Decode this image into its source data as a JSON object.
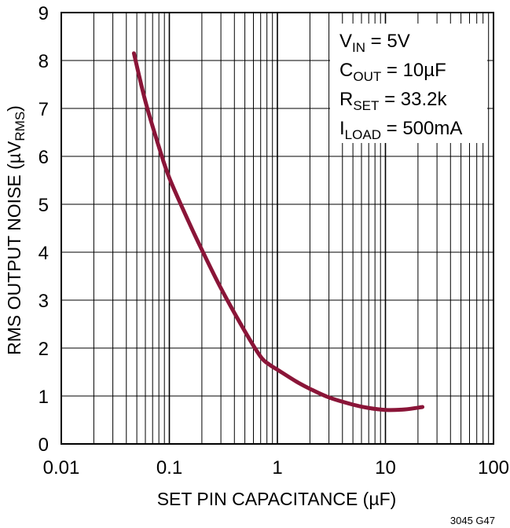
{
  "chart_data": {
    "type": "line",
    "x_scale": "log",
    "xlim": [
      0.01,
      100
    ],
    "ylim": [
      0,
      9
    ],
    "xlabel": "SET PIN CAPACITANCE (µF)",
    "ylabel": {
      "main": "RMS OUTPUT NOISE (µV",
      "sub": "RMS",
      "end": ")"
    },
    "x_ticks": [
      {
        "value": 0.01,
        "label": "0.01"
      },
      {
        "value": 0.1,
        "label": "0.1"
      },
      {
        "value": 1,
        "label": "1"
      },
      {
        "value": 10,
        "label": "10"
      },
      {
        "value": 100,
        "label": "100"
      }
    ],
    "y_ticks": [
      {
        "value": 0,
        "label": "0"
      },
      {
        "value": 1,
        "label": "1"
      },
      {
        "value": 2,
        "label": "2"
      },
      {
        "value": 3,
        "label": "3"
      },
      {
        "value": 4,
        "label": "4"
      },
      {
        "value": 5,
        "label": "5"
      },
      {
        "value": 6,
        "label": "6"
      },
      {
        "value": 7,
        "label": "7"
      },
      {
        "value": 8,
        "label": "8"
      },
      {
        "value": 9,
        "label": "9"
      }
    ],
    "grid": true,
    "series": [
      {
        "color": "#8a1538",
        "x": [
          0.047,
          0.06,
          0.08,
          0.1,
          0.15,
          0.2,
          0.3,
          0.5,
          0.7,
          0.85,
          1.0,
          1.5,
          2,
          3,
          5,
          7,
          10,
          15,
          22
        ],
        "y": [
          8.15,
          7.15,
          6.2,
          5.55,
          4.65,
          4.05,
          3.25,
          2.35,
          1.82,
          1.65,
          1.55,
          1.3,
          1.15,
          0.97,
          0.82,
          0.75,
          0.71,
          0.72,
          0.77
        ]
      }
    ],
    "legend_placement": "top-right",
    "annotation_lines": [
      {
        "main": "V",
        "sub": "IN",
        "rest": " = 5V"
      },
      {
        "main": "C",
        "sub": "OUT",
        "rest": " = 10µF"
      },
      {
        "main": "R",
        "sub": "SET",
        "rest": " = 33.2k"
      },
      {
        "main": "I",
        "sub": "LOAD",
        "rest": " = 500mA"
      }
    ],
    "figure_ref": "3045 G47"
  }
}
